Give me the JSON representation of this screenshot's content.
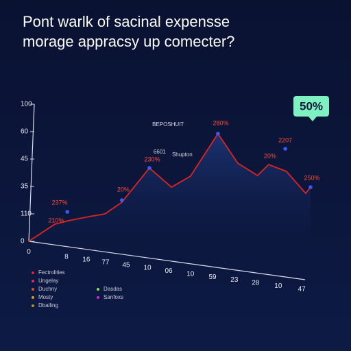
{
  "chart_data": {
    "type": "line",
    "title": "Pont warlk of sacinal expensse",
    "subtitle": "morage appracsy up comecter?",
    "badge": "50%",
    "xlim": [
      0,
      100
    ],
    "ylim": [
      0,
      100
    ],
    "xticks": [
      0,
      {
        "value": 13.3,
        "label": "8"
      },
      {
        "value": 20.3,
        "label": "16"
      },
      {
        "value": 27.1,
        "label": "77"
      },
      {
        "value": 34.4,
        "label": "45"
      },
      {
        "value": 41.9,
        "label": "10"
      },
      {
        "value": 49.4,
        "label": "06"
      },
      {
        "value": 57.1,
        "label": "10"
      },
      {
        "value": 64.9,
        "label": "59"
      },
      {
        "value": 72.6,
        "label": "23"
      },
      {
        "value": 80.1,
        "label": "28"
      },
      {
        "value": 88.1,
        "label": "10"
      },
      {
        "value": 96.4,
        "label": "47"
      }
    ],
    "yticks": [
      100,
      {
        "value": 80,
        "label": "60"
      },
      {
        "value": 60,
        "label": "45"
      },
      {
        "value": 40,
        "label": "35"
      },
      {
        "value": 20,
        "label": "110"
      },
      0
    ],
    "x": [
      0,
      9.2,
      14.0,
      21.3,
      26.9,
      32.9,
      42.6,
      50.4,
      57.1,
      66.8,
      73.8,
      80.8,
      84.7,
      91.0,
      97.8,
      99.5
    ],
    "series": [
      {
        "color": "#e0241f",
        "values": [
          0,
          12.5,
          15,
          18,
          20,
          28.5,
          53.5,
          39.5,
          47.5,
          78.5,
          57,
          48,
          56,
          51,
          35,
          39.5
        ]
      }
    ],
    "markers": {
      "color": "#3a5cf0",
      "x": [
        13.6,
        32.9,
        42.6,
        66.8,
        90.6,
        99.5
      ],
      "y": [
        21.5,
        30,
        53.5,
        78.5,
        67.5,
        39.5
      ]
    },
    "annotations": [
      {
        "text": "210%",
        "x": 9.7,
        "y": 15
      },
      {
        "text": "237%",
        "x": 10.9,
        "y": 28
      },
      {
        "text": "20%",
        "x": 33.4,
        "y": 37.5
      },
      {
        "text": "230%",
        "x": 43.6,
        "y": 59.5
      },
      {
        "text": "280%",
        "x": 67.8,
        "y": 86
      },
      {
        "text": "2207",
        "x": 90.6,
        "y": 73.5
      },
      {
        "text": "20%",
        "x": 85.2,
        "y": 62
      },
      {
        "text": "250%",
        "x": 100,
        "y": 46
      }
    ],
    "notes": [
      {
        "text": "BEPOSHUIT",
        "x": 49.2,
        "y": 85
      },
      {
        "text": "6601",
        "x": 46.2,
        "y": 65
      },
      {
        "text": "Shupton",
        "x": 54.2,
        "y": 63
      }
    ],
    "legend": [
      [
        {
          "label": "Fectrolities",
          "color": "#e0241f"
        },
        {
          "label": "Ungelay",
          "color": "#e0246a"
        },
        {
          "label": "Duchny",
          "color": "#e0501f"
        },
        {
          "label": "Mosty",
          "color": "#e09a1f"
        },
        {
          "label": "Dballing",
          "color": "#c08a20"
        }
      ],
      [
        {
          "label": "Dasdas",
          "color": "#8ae04a"
        },
        {
          "label": "Sanfoxs",
          "color": "#d02ad0"
        }
      ]
    ]
  }
}
